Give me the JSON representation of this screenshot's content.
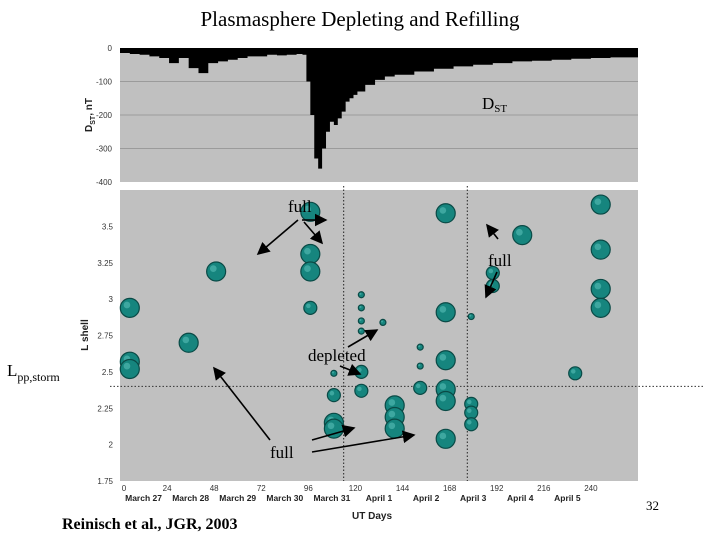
{
  "title": "Plasmasphere Depleting and Refilling",
  "citation": "Reinisch et al., JGR, 2003",
  "page_number": "32",
  "annotations": {
    "dst": "D",
    "dst_sub": "ST",
    "full": "full",
    "depleted": "depleted",
    "lpp": "L",
    "lpp_sub": "pp,storm"
  },
  "colors": {
    "panel_bg": "#c0c0c0",
    "dst_fill": "#000000",
    "marker": "#16857e",
    "marker_dark": "#0a4a46"
  },
  "chart_data": [
    {
      "type": "area",
      "ylabel": "D",
      "ylabel_sub": "ST",
      "ylabel_unit": ", nT",
      "ylim": [
        -400,
        0
      ],
      "yticks": [
        0,
        -100,
        -200,
        -300,
        -400
      ],
      "x_range_hours": [
        0,
        264
      ],
      "x": [
        0,
        5,
        10,
        15,
        20,
        25,
        30,
        35,
        40,
        45,
        50,
        55,
        60,
        65,
        70,
        75,
        80,
        85,
        90,
        93,
        95,
        97,
        99,
        101,
        103,
        105,
        107,
        109,
        111,
        113,
        115,
        117,
        119,
        121,
        125,
        130,
        135,
        140,
        150,
        160,
        170,
        180,
        190,
        200,
        210,
        220,
        230,
        240,
        250,
        264
      ],
      "y": [
        -15,
        -18,
        -20,
        -25,
        -30,
        -45,
        -30,
        -60,
        -75,
        -45,
        -40,
        -35,
        -30,
        -25,
        -25,
        -20,
        -22,
        -20,
        -18,
        -20,
        -100,
        -200,
        -330,
        -360,
        -300,
        -250,
        -220,
        -230,
        -210,
        -190,
        -160,
        -150,
        -140,
        -130,
        -110,
        -95,
        -85,
        -80,
        -70,
        -62,
        -55,
        -50,
        -45,
        -40,
        -38,
        -35,
        -32,
        -30,
        -28,
        -25
      ]
    },
    {
      "type": "scatter",
      "xlabel": "UT Days",
      "ylabel": "L shell",
      "ylim": [
        1.75,
        3.75
      ],
      "yticks": [
        1.75,
        2,
        2.25,
        2.5,
        2.75,
        3,
        3.25,
        3.5
      ],
      "xlim": [
        0,
        264
      ],
      "xticks": [
        0,
        24,
        48,
        72,
        96,
        120,
        144,
        168,
        192,
        216,
        240
      ],
      "categories": [
        "March 27",
        "March 28",
        "March 29",
        "March 30",
        "March 31",
        "April 1",
        "April 2",
        "April 3",
        "April 4",
        "April 5"
      ],
      "marker_lines_hours": [
        114,
        177
      ],
      "lpp_storm": 2.4,
      "points": [
        {
          "x": 5,
          "y": 2.94,
          "size": 2
        },
        {
          "x": 5,
          "y": 2.57,
          "size": 2
        },
        {
          "x": 5,
          "y": 2.52,
          "size": 2
        },
        {
          "x": 35,
          "y": 2.7,
          "size": 2
        },
        {
          "x": 49,
          "y": 3.19,
          "size": 2
        },
        {
          "x": 97,
          "y": 3.6,
          "size": 2
        },
        {
          "x": 97,
          "y": 3.31,
          "size": 2
        },
        {
          "x": 97,
          "y": 3.19,
          "size": 2
        },
        {
          "x": 97,
          "y": 2.94,
          "size": 1
        },
        {
          "x": 109,
          "y": 2.34,
          "size": 1
        },
        {
          "x": 109,
          "y": 2.15,
          "size": 2
        },
        {
          "x": 109,
          "y": 2.11,
          "size": 2
        },
        {
          "x": 109,
          "y": 2.49,
          "size": 0
        },
        {
          "x": 123,
          "y": 3.03,
          "size": 0
        },
        {
          "x": 123,
          "y": 2.94,
          "size": 0
        },
        {
          "x": 123,
          "y": 2.85,
          "size": 0
        },
        {
          "x": 123,
          "y": 2.78,
          "size": 0
        },
        {
          "x": 123,
          "y": 2.5,
          "size": 1
        },
        {
          "x": 123,
          "y": 2.37,
          "size": 1
        },
        {
          "x": 134,
          "y": 2.84,
          "size": 0
        },
        {
          "x": 140,
          "y": 2.27,
          "size": 2
        },
        {
          "x": 140,
          "y": 2.19,
          "size": 2
        },
        {
          "x": 140,
          "y": 2.11,
          "size": 2
        },
        {
          "x": 153,
          "y": 2.67,
          "size": 0
        },
        {
          "x": 153,
          "y": 2.54,
          "size": 0
        },
        {
          "x": 153,
          "y": 2.39,
          "size": 1
        },
        {
          "x": 166,
          "y": 3.59,
          "size": 2
        },
        {
          "x": 166,
          "y": 2.91,
          "size": 2
        },
        {
          "x": 166,
          "y": 2.58,
          "size": 2
        },
        {
          "x": 166,
          "y": 2.38,
          "size": 2
        },
        {
          "x": 166,
          "y": 2.3,
          "size": 2
        },
        {
          "x": 166,
          "y": 2.04,
          "size": 2
        },
        {
          "x": 179,
          "y": 2.88,
          "size": 0
        },
        {
          "x": 179,
          "y": 2.28,
          "size": 1
        },
        {
          "x": 179,
          "y": 2.22,
          "size": 1
        },
        {
          "x": 179,
          "y": 2.14,
          "size": 1
        },
        {
          "x": 190,
          "y": 3.18,
          "size": 1
        },
        {
          "x": 190,
          "y": 3.09,
          "size": 1
        },
        {
          "x": 205,
          "y": 3.44,
          "size": 2
        },
        {
          "x": 232,
          "y": 2.49,
          "size": 1
        },
        {
          "x": 245,
          "y": 3.65,
          "size": 2
        },
        {
          "x": 245,
          "y": 3.34,
          "size": 2
        },
        {
          "x": 245,
          "y": 3.07,
          "size": 2
        },
        {
          "x": 245,
          "y": 2.94,
          "size": 2
        }
      ]
    }
  ]
}
